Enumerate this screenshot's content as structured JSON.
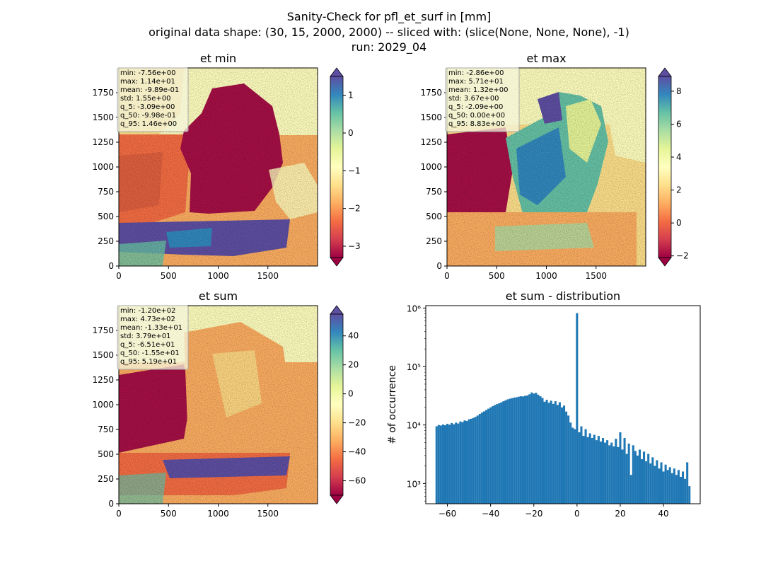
{
  "figure": {
    "title_lines": [
      "Sanity-Check for pfl_et_surf in [mm]",
      "original data shape: (30, 15, 2000, 2000) -- sliced with: (slice(None, None, None), -1)",
      "run: 2029_04"
    ]
  },
  "colormap": "Spectral",
  "colors": {
    "hist_bar": "#1f77b4",
    "stats_box_bg": "#f5f5dc"
  },
  "panels": [
    {
      "title": "et min",
      "image_description": "map over Germany",
      "xticks": [
        "0",
        "500",
        "1000",
        "1500"
      ],
      "yticks": [
        "0",
        "250",
        "500",
        "750",
        "1000",
        "1250",
        "1500",
        "1750"
      ],
      "colorbar": {
        "vmin": -3.3,
        "vmax": 1.5,
        "ticks": [
          "1",
          "0",
          "−1",
          "−2",
          "−3"
        ],
        "tick_values": [
          1,
          0,
          -1,
          -2,
          -3
        ]
      },
      "stats": [
        "min: -7.56e+00",
        "max: 1.14e+01",
        "mean: -9.89e-01",
        "std: 1.55e+00",
        "q_5: -3.09e+00",
        "q_50: -9.98e-01",
        "q_95: 1.46e+00"
      ]
    },
    {
      "title": "et max",
      "image_description": "map over Germany",
      "xticks": [
        "0",
        "500",
        "1000",
        "1500"
      ],
      "yticks": [
        "0",
        "250",
        "500",
        "750",
        "1000",
        "1250",
        "1500",
        "1750"
      ],
      "colorbar": {
        "vmin": -2.1,
        "vmax": 8.9,
        "ticks": [
          "8",
          "6",
          "4",
          "2",
          "0",
          "−2"
        ],
        "tick_values": [
          8,
          6,
          4,
          2,
          0,
          -2
        ]
      },
      "stats": [
        "min: -2.86e+00",
        "max: 5.71e+01",
        "mean: 1.32e+00",
        "std: 3.67e+00",
        "q_5: -2.09e+00",
        "q_50: 0.00e+00",
        "q_95: 8.83e+00"
      ]
    },
    {
      "title": "et sum",
      "image_description": "map over Germany",
      "xticks": [
        "0",
        "500",
        "1000",
        "1500"
      ],
      "yticks": [
        "0",
        "250",
        "500",
        "750",
        "1000",
        "1250",
        "1500",
        "1750"
      ],
      "colorbar": {
        "vmin": -70,
        "vmax": 55,
        "ticks": [
          "40",
          "20",
          "0",
          "−20",
          "−40",
          "−60"
        ],
        "tick_values": [
          40,
          20,
          0,
          -20,
          -40,
          -60
        ]
      },
      "stats": [
        "min: -1.20e+02",
        "max: 4.73e+02",
        "mean: -1.33e+01",
        "std: 3.79e+01",
        "q_5: -6.51e+01",
        "q_50: -1.55e+01",
        "q_95: 5.19e+01"
      ]
    }
  ],
  "chart_data": {
    "type": "bar",
    "title": "et sum - distribution",
    "xlabel": "",
    "ylabel": "# of occurrence",
    "yscale": "log",
    "xlim": [
      -70,
      57
    ],
    "ylim": [
      450,
      1100000
    ],
    "xticks": [
      -60,
      -40,
      -20,
      0,
      20,
      40
    ],
    "xtick_labels": [
      "−60",
      "−40",
      "−20",
      "0",
      "20",
      "40"
    ],
    "yticks": [
      1000,
      10000,
      100000,
      1000000
    ],
    "ytick_labels": [
      "10³",
      "10⁴",
      "10⁵",
      "10⁶"
    ],
    "bin_width": 1,
    "bins": [
      [
        -65,
        9500
      ],
      [
        -64,
        10000
      ],
      [
        -63,
        9800
      ],
      [
        -62,
        10200
      ],
      [
        -61,
        9900
      ],
      [
        -60,
        10500
      ],
      [
        -59,
        10100
      ],
      [
        -58,
        10800
      ],
      [
        -57,
        10300
      ],
      [
        -56,
        11000
      ],
      [
        -55,
        10600
      ],
      [
        -54,
        11500
      ],
      [
        -53,
        11200
      ],
      [
        -52,
        12000
      ],
      [
        -51,
        11700
      ],
      [
        -50,
        12500
      ],
      [
        -49,
        12800
      ],
      [
        -48,
        13200
      ],
      [
        -47,
        13800
      ],
      [
        -46,
        14500
      ],
      [
        -45,
        15500
      ],
      [
        -44,
        16300
      ],
      [
        -43,
        17100
      ],
      [
        -42,
        18000
      ],
      [
        -41,
        19000
      ],
      [
        -40,
        20000
      ],
      [
        -39,
        21000
      ],
      [
        -38,
        22000
      ],
      [
        -37,
        22800
      ],
      [
        -36,
        23500
      ],
      [
        -35,
        24500
      ],
      [
        -34,
        25500
      ],
      [
        -33,
        26500
      ],
      [
        -32,
        27500
      ],
      [
        -31,
        28200
      ],
      [
        -30,
        28800
      ],
      [
        -29,
        29500
      ],
      [
        -28,
        29800
      ],
      [
        -27,
        30500
      ],
      [
        -26,
        31000
      ],
      [
        -25,
        30800
      ],
      [
        -24,
        31500
      ],
      [
        -23,
        32000
      ],
      [
        -22,
        33500
      ],
      [
        -21,
        36000
      ],
      [
        -20,
        34500
      ],
      [
        -19,
        35500
      ],
      [
        -18,
        33000
      ],
      [
        -17,
        31000
      ],
      [
        -16,
        29000
      ],
      [
        -15,
        25000
      ],
      [
        -14,
        27000
      ],
      [
        -13,
        24000
      ],
      [
        -12,
        26000
      ],
      [
        -11,
        23000
      ],
      [
        -10,
        25500
      ],
      [
        -9,
        22000
      ],
      [
        -8,
        24500
      ],
      [
        -7,
        20000
      ],
      [
        -6,
        21500
      ],
      [
        -5,
        17000
      ],
      [
        -4,
        14500
      ],
      [
        -3,
        11000
      ],
      [
        -2,
        9000
      ],
      [
        -1,
        8500
      ],
      [
        0,
        820000
      ],
      [
        1,
        7500
      ],
      [
        2,
        9500
      ],
      [
        3,
        6500
      ],
      [
        4,
        8500
      ],
      [
        5,
        6200
      ],
      [
        6,
        7200
      ],
      [
        7,
        6000
      ],
      [
        8,
        6800
      ],
      [
        9,
        5500
      ],
      [
        10,
        6500
      ],
      [
        11,
        5200
      ],
      [
        12,
        6000
      ],
      [
        13,
        5000
      ],
      [
        14,
        5500
      ],
      [
        15,
        4500
      ],
      [
        16,
        5000
      ],
      [
        17,
        4300
      ],
      [
        18,
        5800
      ],
      [
        19,
        4200
      ],
      [
        20,
        7500
      ],
      [
        21,
        3800
      ],
      [
        22,
        6000
      ],
      [
        23,
        3200
      ],
      [
        24,
        4800
      ],
      [
        25,
        1400
      ],
      [
        26,
        4500
      ],
      [
        27,
        3600
      ],
      [
        28,
        3000
      ],
      [
        29,
        3800
      ],
      [
        30,
        2600
      ],
      [
        31,
        3500
      ],
      [
        32,
        2400
      ],
      [
        33,
        3200
      ],
      [
        34,
        2200
      ],
      [
        35,
        2800
      ],
      [
        36,
        2000
      ],
      [
        37,
        2500
      ],
      [
        38,
        1800
      ],
      [
        39,
        2300
      ],
      [
        40,
        1600
      ],
      [
        41,
        2100
      ],
      [
        42,
        1700
      ],
      [
        43,
        1900
      ],
      [
        44,
        1500
      ],
      [
        45,
        1800
      ],
      [
        46,
        1400
      ],
      [
        47,
        1700
      ],
      [
        48,
        1300
      ],
      [
        49,
        1600
      ],
      [
        50,
        1200
      ],
      [
        51,
        2300
      ],
      [
        52,
        900
      ]
    ]
  }
}
